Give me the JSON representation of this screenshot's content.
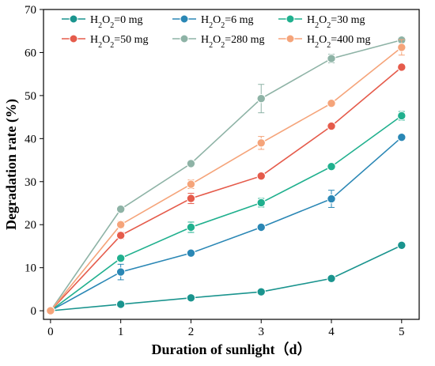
{
  "chart_data": {
    "type": "line",
    "x": [
      0,
      1,
      2,
      3,
      4,
      5
    ],
    "xlim": [
      -0.1,
      5.25
    ],
    "ylim": [
      -2,
      70
    ],
    "xticks": [
      0,
      1,
      2,
      3,
      4,
      5
    ],
    "yticks": [
      0,
      10,
      20,
      30,
      40,
      50,
      60,
      70
    ],
    "xlabel": "Duration of sunlight（d）",
    "ylabel": "Degradation rate (%)",
    "grid": false,
    "legend_placement": "top-left",
    "series": [
      {
        "name": "H2O2=0 mg",
        "name_parts": [
          "H",
          "2",
          "O",
          "2",
          "=0 mg"
        ],
        "color": "#1a948e",
        "values": [
          0,
          1.5,
          3.0,
          4.4,
          7.5,
          15.2
        ],
        "errors": [
          0,
          0.3,
          0.3,
          0.3,
          0.4,
          0.5
        ]
      },
      {
        "name": "H2O2=6 mg",
        "name_parts": [
          "H",
          "2",
          "O",
          "2",
          "=6 mg"
        ],
        "color": "#2a87b5",
        "values": [
          0,
          9.0,
          13.4,
          19.4,
          26.0,
          40.3
        ],
        "errors": [
          0,
          1.8,
          0.5,
          0.5,
          2.0,
          0.6
        ]
      },
      {
        "name": "H2O2=30 mg",
        "name_parts": [
          "H",
          "2",
          "O",
          "2",
          "=30 mg"
        ],
        "color": "#20b08e",
        "values": [
          0,
          12.2,
          19.4,
          25.1,
          33.5,
          45.3
        ],
        "errors": [
          0,
          0.5,
          1.2,
          1.0,
          0.6,
          1.0
        ]
      },
      {
        "name": "H2O2=50 mg",
        "name_parts": [
          "H",
          "2",
          "O",
          "2",
          "=50 mg"
        ],
        "color": "#e55b4b",
        "values": [
          0,
          17.5,
          26.1,
          31.3,
          42.9,
          56.6
        ],
        "errors": [
          0,
          0.8,
          1.2,
          0.5,
          0.5,
          0.5
        ]
      },
      {
        "name": "H2O2=280 mg",
        "name_parts": [
          "H",
          "2",
          "O",
          "2",
          "=280 mg"
        ],
        "color": "#8eb3a6",
        "values": [
          0,
          23.6,
          34.2,
          49.3,
          58.6,
          62.9
        ],
        "errors": [
          0,
          0.6,
          0.5,
          3.3,
          1.0,
          0.7
        ]
      },
      {
        "name": "H2O2=400 mg",
        "name_parts": [
          "H",
          "2",
          "O",
          "2",
          "=400 mg"
        ],
        "color": "#f5a47a",
        "values": [
          0,
          20.0,
          29.4,
          39.0,
          48.2,
          61.2
        ],
        "errors": [
          0,
          0.8,
          1.0,
          1.5,
          0.5,
          1.8
        ]
      }
    ]
  }
}
